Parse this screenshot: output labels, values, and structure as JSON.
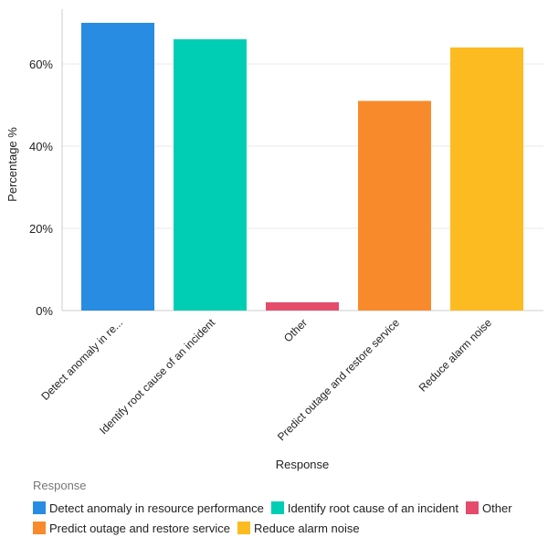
{
  "chart_data": {
    "type": "bar",
    "xlabel": "Response",
    "ylabel": "Percentage %",
    "ylim": [
      0,
      72
    ],
    "yticks": [
      "0%",
      "20%",
      "40%",
      "60%"
    ],
    "ytick_values": [
      0,
      20,
      40,
      60
    ],
    "grid": true,
    "categories": [
      "Detect anomaly in re...",
      "Identify root cause of an incident",
      "Other",
      "Predict outage and restore service",
      "Reduce alarm noise"
    ],
    "values": [
      70,
      66,
      2,
      51,
      64
    ],
    "colors": [
      "#278ce2",
      "#00ceb4",
      "#e54b6b",
      "#f98a2c",
      "#fdbb22"
    ],
    "legend": {
      "title": "Response",
      "position": "bottom",
      "entries": [
        "Detect anomaly in resource performance",
        "Identify root cause of an incident",
        "Other",
        "Predict outage and restore service",
        "Reduce alarm noise"
      ]
    }
  }
}
